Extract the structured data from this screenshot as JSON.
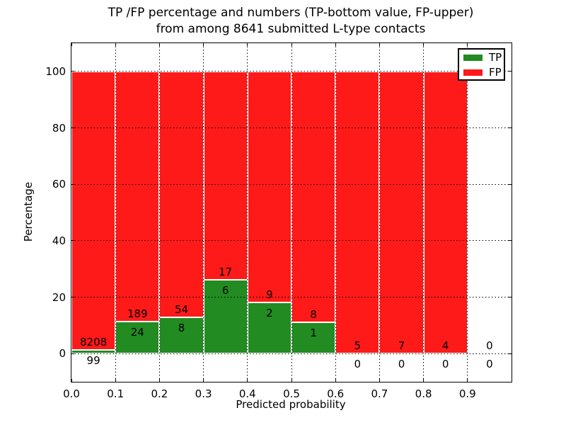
{
  "figure": {
    "title_line1": "TP /FP percentage and numbers (TP-bottom value, FP-upper)",
    "title_line2": "from among 8641 submitted L-type contacts"
  },
  "chart_data": {
    "type": "bar",
    "stacked": true,
    "title": "TP /FP percentage and numbers (TP-bottom value, FP-upper)\nfrom among 8641 submitted L-type contacts",
    "xlabel": "Predicted probability",
    "ylabel": "Percentage",
    "xlim": [
      0.0,
      1.0
    ],
    "ylim": [
      -10,
      110
    ],
    "grid": "dotted",
    "xticks": [
      "0.0",
      "0.1",
      "0.2",
      "0.3",
      "0.4",
      "0.5",
      "0.6",
      "0.7",
      "0.8",
      "0.9"
    ],
    "yticks": [
      0,
      20,
      40,
      60,
      80,
      100
    ],
    "legend": {
      "position": "upper right",
      "entries": [
        {
          "label": "TP",
          "color": "#228b22"
        },
        {
          "label": "FP",
          "color": "#ff1a1a"
        }
      ]
    },
    "bins": [
      {
        "x_range": [
          0.0,
          0.1
        ],
        "tp_count": 99,
        "fp_count": 8208,
        "tp_pct": 1.19,
        "fp_pct": 98.81
      },
      {
        "x_range": [
          0.1,
          0.2
        ],
        "tp_count": 24,
        "fp_count": 189,
        "tp_pct": 11.27,
        "fp_pct": 88.73
      },
      {
        "x_range": [
          0.2,
          0.3
        ],
        "tp_count": 8,
        "fp_count": 54,
        "tp_pct": 12.9,
        "fp_pct": 87.1
      },
      {
        "x_range": [
          0.3,
          0.4
        ],
        "tp_count": 6,
        "fp_count": 17,
        "tp_pct": 26.09,
        "fp_pct": 73.91
      },
      {
        "x_range": [
          0.4,
          0.5
        ],
        "tp_count": 2,
        "fp_count": 9,
        "tp_pct": 18.18,
        "fp_pct": 81.82
      },
      {
        "x_range": [
          0.5,
          0.6
        ],
        "tp_count": 1,
        "fp_count": 8,
        "tp_pct": 11.11,
        "fp_pct": 88.89
      },
      {
        "x_range": [
          0.6,
          0.7
        ],
        "tp_count": 0,
        "fp_count": 5,
        "tp_pct": 0.0,
        "fp_pct": 100.0
      },
      {
        "x_range": [
          0.7,
          0.8
        ],
        "tp_count": 0,
        "fp_count": 7,
        "tp_pct": 0.0,
        "fp_pct": 100.0
      },
      {
        "x_range": [
          0.8,
          0.9
        ],
        "tp_count": 0,
        "fp_count": 4,
        "tp_pct": 0.0,
        "fp_pct": 100.0
      },
      {
        "x_range": [
          0.9,
          1.0
        ],
        "tp_count": 0,
        "fp_count": 0,
        "tp_pct": 0.0,
        "fp_pct": 0.0
      }
    ]
  }
}
